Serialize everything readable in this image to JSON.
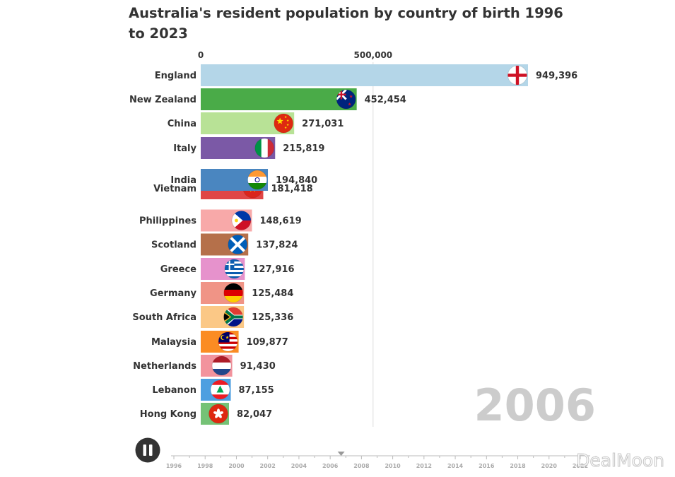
{
  "chart_data": {
    "type": "bar",
    "orientation": "horizontal",
    "title": "Australia's resident population by country of birth 1996 to 2023",
    "current_year": "2006",
    "x_ticks": [
      0,
      500000
    ],
    "x_tick_labels": [
      "0",
      "500,000"
    ],
    "xlim": [
      0,
      949396
    ],
    "categories": [
      "England",
      "New Zealand",
      "China",
      "Italy",
      "India",
      "Vietnam",
      "Philippines",
      "Scotland",
      "Greece",
      "Germany",
      "South Africa",
      "Malaysia",
      "Netherlands",
      "Lebanon",
      "Hong Kong"
    ],
    "values": [
      949396,
      452454,
      271031,
      215819,
      194840,
      181418,
      148619,
      137824,
      127916,
      125484,
      125336,
      109877,
      91430,
      87155,
      82047
    ],
    "value_labels": [
      "949,396",
      "452,454",
      "271,031",
      "215,819",
      "194,840",
      "181,418",
      "148,619",
      "137,824",
      "127,916",
      "125,484",
      "125,336",
      "109,877",
      "91,430",
      "87,155",
      "82,047"
    ],
    "bar_colors": [
      "#b4d6e8",
      "#4aab48",
      "#b8e296",
      "#7b59a6",
      "#4a86c0",
      "#e04646",
      "#f8a9a9",
      "#b5704a",
      "#e692cc",
      "#f09486",
      "#fbc886",
      "#fb8c23",
      "#f2939d",
      "#4d9fe0",
      "#75c276"
    ],
    "flags": [
      "england-flag",
      "new-zealand-flag",
      "china-flag",
      "italy-flag",
      "india-flag",
      "vietnam-flag",
      "philippines-flag",
      "scotland-flag",
      "greece-flag",
      "germany-flag",
      "south-africa-flag",
      "malaysia-flag",
      "netherlands-flag",
      "lebanon-flag",
      "hong-kong-flag"
    ]
  },
  "timeline": {
    "years": [
      "1996",
      "1998",
      "2000",
      "2002",
      "2004",
      "2006",
      "2008",
      "2010",
      "2012",
      "2014",
      "2016",
      "2018",
      "2020",
      "2022"
    ],
    "current_position": 2006.7,
    "control": "pause"
  },
  "watermark": "DealMoon"
}
